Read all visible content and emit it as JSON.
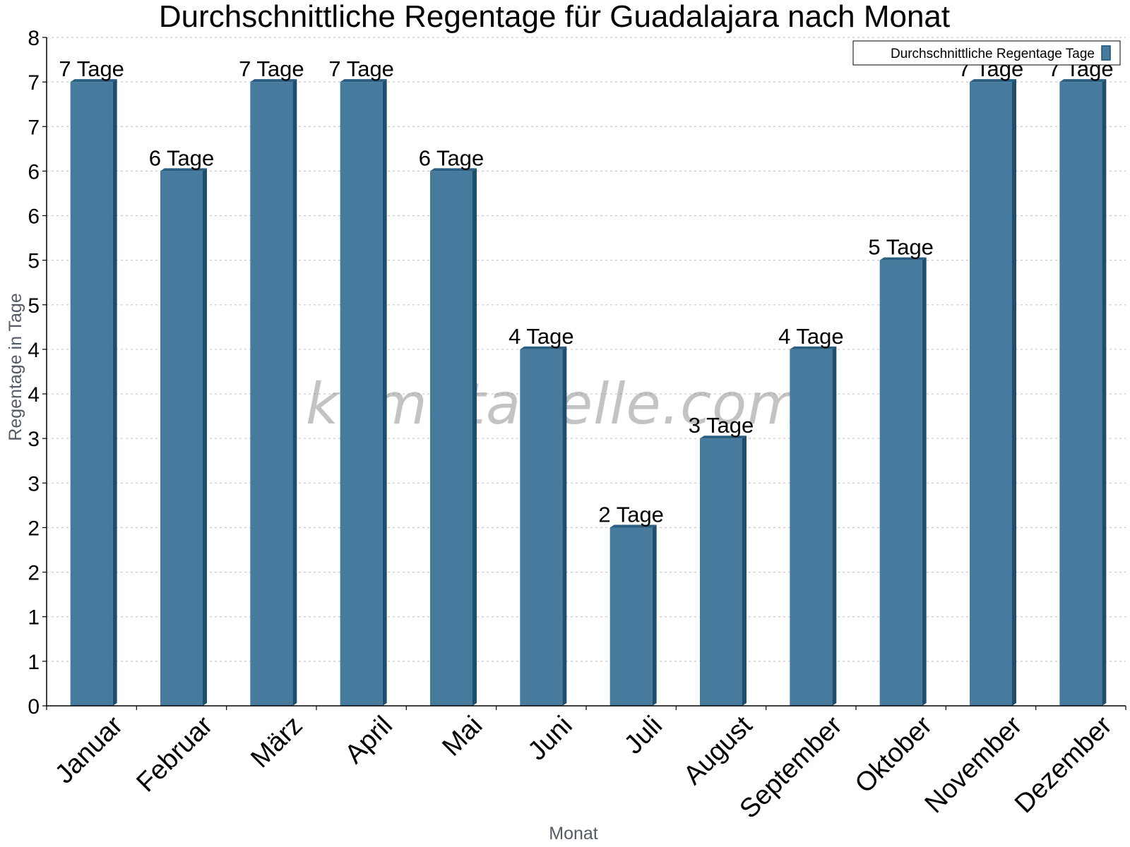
{
  "watermark": "klimatabelle.com",
  "chart_data": {
    "type": "bar",
    "title": "Durchschnittliche Regentage für Guadalajara nach Monat",
    "xlabel": "Monat",
    "ylabel": "Regentage in Tage",
    "categories": [
      "Januar",
      "Februar",
      "März",
      "April",
      "Mai",
      "Juni",
      "Juli",
      "August",
      "September",
      "Oktober",
      "November",
      "Dezember"
    ],
    "series": [
      {
        "name": "Durchschnittliche Regentage Tage",
        "values": [
          7,
          6,
          7,
          7,
          6,
          4,
          2,
          3,
          4,
          5,
          7,
          7
        ],
        "data_labels": [
          "7 Tage",
          "6 Tage",
          "7 Tage",
          "7 Tage",
          "6 Tage",
          "4 Tage",
          "2 Tage",
          "3 Tage",
          "4 Tage",
          "5 Tage",
          "7 Tage",
          "7 Tage"
        ]
      }
    ],
    "ylim": [
      0,
      7.5
    ],
    "y_ticks": [
      0,
      0.5,
      1,
      1.5,
      2,
      2.5,
      3,
      3.5,
      4,
      4.5,
      5,
      5.5,
      6,
      6.5,
      7,
      7.5
    ],
    "y_tick_labels": [
      "0",
      "1",
      "1",
      "2",
      "2",
      "3",
      "3",
      "4",
      "4",
      "5",
      "5",
      "6",
      "6",
      "7",
      "7",
      "8"
    ],
    "grid": true,
    "legend_position": "top-right",
    "colors": {
      "bar_front": "#467b9e",
      "bar_side": "#1d4e6e",
      "bar_top": "#2b5f82",
      "grid": "#c8c8c8",
      "axis": "#000000"
    }
  }
}
